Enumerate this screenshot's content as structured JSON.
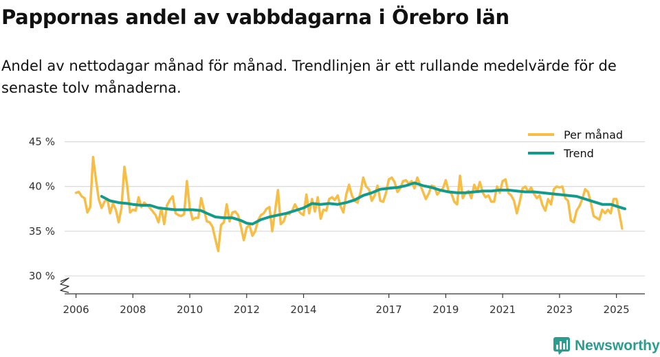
{
  "header": {
    "title": "Pappornas andel av vabbdagarna i Örebro län",
    "subtitle": "Andel av nettodagar månad för månad. Trendlinjen är ett rullande medelvärde för de senaste tolv månaderna."
  },
  "brand": {
    "name": "Newsworthy",
    "icon": "newsworthy-logo-icon",
    "color": "#2a9d8f"
  },
  "chart_data": {
    "type": "line",
    "title": "Pappornas andel av vabbdagarna i Örebro län",
    "xlabel": "",
    "ylabel": "",
    "ylim": [
      28,
      45.5
    ],
    "xlim": [
      2005.6,
      2026.0
    ],
    "y_ticks": [
      30,
      35,
      40,
      45
    ],
    "y_tick_labels": [
      "30 %",
      "35 %",
      "40 %",
      "45 %"
    ],
    "x_ticks": [
      2006,
      2008,
      2010,
      2012,
      2014,
      2017,
      2019,
      2021,
      2023,
      2025
    ],
    "x_tick_labels": [
      "2006",
      "2008",
      "2010",
      "2012",
      "2014",
      "2017",
      "2019",
      "2021",
      "2023",
      "2025"
    ],
    "axis_break": true,
    "grid": "horizontal",
    "legend_position": "top-right",
    "series": [
      {
        "name": "Per månad",
        "color": "#f7bd45",
        "points": [
          [
            2006.0,
            39.3
          ],
          [
            2006.1,
            39.4
          ],
          [
            2006.2,
            38.9
          ],
          [
            2006.3,
            38.7
          ],
          [
            2006.4,
            37.1
          ],
          [
            2006.5,
            37.7
          ],
          [
            2006.6,
            43.3
          ],
          [
            2006.7,
            40.8
          ],
          [
            2006.8,
            38.6
          ],
          [
            2006.9,
            37.6
          ],
          [
            2007.0,
            38.3
          ],
          [
            2007.1,
            38.6
          ],
          [
            2007.2,
            37.0
          ],
          [
            2007.3,
            38.1
          ],
          [
            2007.4,
            37.4
          ],
          [
            2007.5,
            36.0
          ],
          [
            2007.6,
            37.6
          ],
          [
            2007.7,
            42.2
          ],
          [
            2007.8,
            40.1
          ],
          [
            2007.9,
            37.1
          ],
          [
            2008.0,
            37.4
          ],
          [
            2008.1,
            37.3
          ],
          [
            2008.2,
            38.8
          ],
          [
            2008.3,
            37.7
          ],
          [
            2008.4,
            38.2
          ],
          [
            2008.5,
            37.9
          ],
          [
            2008.6,
            37.6
          ],
          [
            2008.7,
            37.2
          ],
          [
            2008.8,
            36.8
          ],
          [
            2008.9,
            36.0
          ],
          [
            2009.0,
            37.6
          ],
          [
            2009.1,
            35.8
          ],
          [
            2009.2,
            37.9
          ],
          [
            2009.3,
            38.5
          ],
          [
            2009.4,
            38.9
          ],
          [
            2009.5,
            37.0
          ],
          [
            2009.6,
            36.8
          ],
          [
            2009.7,
            36.7
          ],
          [
            2009.8,
            36.9
          ],
          [
            2009.9,
            40.6
          ],
          [
            2010.0,
            37.6
          ],
          [
            2010.1,
            36.3
          ],
          [
            2010.2,
            36.5
          ],
          [
            2010.3,
            36.5
          ],
          [
            2010.4,
            38.7
          ],
          [
            2010.5,
            37.4
          ],
          [
            2010.6,
            36.1
          ],
          [
            2010.7,
            36.0
          ],
          [
            2010.8,
            35.5
          ],
          [
            2010.9,
            34.1
          ],
          [
            2011.0,
            32.8
          ],
          [
            2011.1,
            35.7
          ],
          [
            2011.2,
            36.0
          ],
          [
            2011.3,
            38.0
          ],
          [
            2011.4,
            36.1
          ],
          [
            2011.5,
            37.1
          ],
          [
            2011.6,
            37.2
          ],
          [
            2011.7,
            36.8
          ],
          [
            2011.8,
            35.5
          ],
          [
            2011.9,
            34.0
          ],
          [
            2012.0,
            35.4
          ],
          [
            2012.1,
            35.7
          ],
          [
            2012.2,
            34.5
          ],
          [
            2012.3,
            35.0
          ],
          [
            2012.4,
            36.2
          ],
          [
            2012.5,
            36.8
          ],
          [
            2012.6,
            37.0
          ],
          [
            2012.7,
            37.5
          ],
          [
            2012.8,
            37.7
          ],
          [
            2012.9,
            35.0
          ],
          [
            2013.0,
            37.3
          ],
          [
            2013.1,
            39.6
          ],
          [
            2013.2,
            35.8
          ],
          [
            2013.3,
            36.1
          ],
          [
            2013.4,
            37.0
          ],
          [
            2013.5,
            36.9
          ],
          [
            2013.6,
            37.3
          ],
          [
            2013.7,
            38.0
          ],
          [
            2013.8,
            37.4
          ],
          [
            2013.9,
            37.0
          ],
          [
            2014.0,
            36.8
          ],
          [
            2014.1,
            39.1
          ],
          [
            2014.2,
            37.0
          ],
          [
            2014.3,
            38.6
          ],
          [
            2014.4,
            37.2
          ],
          [
            2014.5,
            38.8
          ],
          [
            2014.6,
            36.4
          ],
          [
            2014.7,
            37.4
          ],
          [
            2014.8,
            37.3
          ],
          [
            2014.9,
            38.6
          ],
          [
            2015.0,
            38.8
          ],
          [
            2015.1,
            38.5
          ],
          [
            2015.2,
            39.0
          ],
          [
            2015.3,
            37.8
          ],
          [
            2015.4,
            37.1
          ],
          [
            2015.5,
            39.1
          ],
          [
            2015.6,
            40.2
          ],
          [
            2015.7,
            39.0
          ],
          [
            2015.8,
            38.4
          ],
          [
            2015.9,
            38.2
          ],
          [
            2016.0,
            39.3
          ],
          [
            2016.1,
            41.0
          ],
          [
            2016.2,
            40.0
          ],
          [
            2016.3,
            39.7
          ],
          [
            2016.4,
            38.4
          ],
          [
            2016.5,
            39.0
          ],
          [
            2016.6,
            40.1
          ],
          [
            2016.7,
            38.4
          ],
          [
            2016.8,
            38.3
          ],
          [
            2016.9,
            39.3
          ],
          [
            2017.0,
            40.8
          ],
          [
            2017.1,
            41.0
          ],
          [
            2017.2,
            40.5
          ],
          [
            2017.3,
            39.4
          ],
          [
            2017.4,
            39.8
          ],
          [
            2017.5,
            40.6
          ],
          [
            2017.6,
            40.7
          ],
          [
            2017.7,
            40.3
          ],
          [
            2017.8,
            40.6
          ],
          [
            2017.9,
            39.8
          ],
          [
            2018.0,
            41.0
          ],
          [
            2018.1,
            40.2
          ],
          [
            2018.2,
            39.4
          ],
          [
            2018.3,
            38.6
          ],
          [
            2018.4,
            39.2
          ],
          [
            2018.5,
            40.1
          ],
          [
            2018.6,
            40.0
          ],
          [
            2018.7,
            39.1
          ],
          [
            2018.8,
            39.5
          ],
          [
            2018.9,
            39.8
          ],
          [
            2019.0,
            40.7
          ],
          [
            2019.1,
            39.5
          ],
          [
            2019.2,
            39.2
          ],
          [
            2019.3,
            38.3
          ],
          [
            2019.4,
            38.0
          ],
          [
            2019.5,
            41.2
          ],
          [
            2019.6,
            38.7
          ],
          [
            2019.7,
            39.3
          ],
          [
            2019.8,
            39.5
          ],
          [
            2019.9,
            38.7
          ],
          [
            2020.0,
            40.2
          ],
          [
            2020.1,
            39.4
          ],
          [
            2020.2,
            40.5
          ],
          [
            2020.3,
            39.3
          ],
          [
            2020.4,
            38.8
          ],
          [
            2020.5,
            39.0
          ],
          [
            2020.6,
            38.3
          ],
          [
            2020.7,
            38.3
          ],
          [
            2020.8,
            40.0
          ],
          [
            2020.9,
            39.3
          ],
          [
            2021.0,
            40.6
          ],
          [
            2021.1,
            40.8
          ],
          [
            2021.2,
            39.3
          ],
          [
            2021.3,
            39.0
          ],
          [
            2021.4,
            38.4
          ],
          [
            2021.5,
            37.0
          ],
          [
            2021.6,
            38.3
          ],
          [
            2021.7,
            39.8
          ],
          [
            2021.8,
            40.0
          ],
          [
            2021.9,
            39.4
          ],
          [
            2022.0,
            39.9
          ],
          [
            2022.1,
            39.2
          ],
          [
            2022.2,
            38.7
          ],
          [
            2022.3,
            39.0
          ],
          [
            2022.4,
            37.9
          ],
          [
            2022.5,
            37.3
          ],
          [
            2022.6,
            38.6
          ],
          [
            2022.7,
            38.0
          ],
          [
            2022.8,
            39.7
          ],
          [
            2022.9,
            40.0
          ],
          [
            2023.0,
            39.9
          ],
          [
            2023.1,
            40.0
          ],
          [
            2023.2,
            38.7
          ],
          [
            2023.3,
            38.4
          ],
          [
            2023.4,
            36.2
          ],
          [
            2023.5,
            36.0
          ],
          [
            2023.6,
            37.3
          ],
          [
            2023.7,
            37.8
          ],
          [
            2023.8,
            38.6
          ],
          [
            2023.9,
            39.7
          ],
          [
            2024.0,
            39.4
          ],
          [
            2024.1,
            38.2
          ],
          [
            2024.2,
            36.7
          ],
          [
            2024.3,
            36.5
          ],
          [
            2024.4,
            36.3
          ],
          [
            2024.5,
            37.4
          ],
          [
            2024.6,
            37.0
          ],
          [
            2024.7,
            37.4
          ],
          [
            2024.8,
            37.0
          ],
          [
            2024.9,
            38.6
          ],
          [
            2025.0,
            38.6
          ],
          [
            2025.1,
            37.0
          ],
          [
            2025.2,
            35.3
          ]
        ]
      },
      {
        "name": "Trend",
        "color": "#129b8c",
        "points": [
          [
            2006.9,
            38.9
          ],
          [
            2007.2,
            38.4
          ],
          [
            2007.5,
            38.2
          ],
          [
            2007.8,
            38.1
          ],
          [
            2008.0,
            38.0
          ],
          [
            2008.3,
            37.9
          ],
          [
            2008.6,
            37.9
          ],
          [
            2008.9,
            37.6
          ],
          [
            2009.2,
            37.5
          ],
          [
            2009.5,
            37.4
          ],
          [
            2009.8,
            37.4
          ],
          [
            2010.1,
            37.4
          ],
          [
            2010.4,
            37.3
          ],
          [
            2010.6,
            37.0
          ],
          [
            2010.9,
            36.6
          ],
          [
            2011.2,
            36.5
          ],
          [
            2011.5,
            36.5
          ],
          [
            2011.8,
            36.2
          ],
          [
            2012.0,
            35.9
          ],
          [
            2012.2,
            35.8
          ],
          [
            2012.5,
            36.3
          ],
          [
            2012.8,
            36.6
          ],
          [
            2013.1,
            36.8
          ],
          [
            2013.4,
            37.0
          ],
          [
            2013.7,
            37.3
          ],
          [
            2014.0,
            37.6
          ],
          [
            2014.3,
            38.1
          ],
          [
            2014.6,
            38.0
          ],
          [
            2014.9,
            38.1
          ],
          [
            2015.2,
            38.0
          ],
          [
            2015.5,
            38.2
          ],
          [
            2015.8,
            38.5
          ],
          [
            2016.1,
            39.0
          ],
          [
            2016.4,
            39.3
          ],
          [
            2016.7,
            39.7
          ],
          [
            2017.0,
            39.8
          ],
          [
            2017.3,
            39.9
          ],
          [
            2017.6,
            40.1
          ],
          [
            2017.9,
            40.4
          ],
          [
            2018.2,
            40.1
          ],
          [
            2018.5,
            39.9
          ],
          [
            2018.8,
            39.6
          ],
          [
            2019.1,
            39.4
          ],
          [
            2019.4,
            39.3
          ],
          [
            2019.7,
            39.3
          ],
          [
            2020.0,
            39.4
          ],
          [
            2020.3,
            39.5
          ],
          [
            2020.6,
            39.5
          ],
          [
            2020.9,
            39.6
          ],
          [
            2021.2,
            39.6
          ],
          [
            2021.5,
            39.5
          ],
          [
            2021.8,
            39.4
          ],
          [
            2022.1,
            39.4
          ],
          [
            2022.4,
            39.3
          ],
          [
            2022.7,
            39.2
          ],
          [
            2023.0,
            39.1
          ],
          [
            2023.3,
            39.0
          ],
          [
            2023.6,
            38.9
          ],
          [
            2023.9,
            38.6
          ],
          [
            2024.2,
            38.3
          ],
          [
            2024.5,
            38.0
          ],
          [
            2024.8,
            38.0
          ],
          [
            2025.0,
            37.8
          ],
          [
            2025.3,
            37.5
          ]
        ]
      }
    ]
  }
}
